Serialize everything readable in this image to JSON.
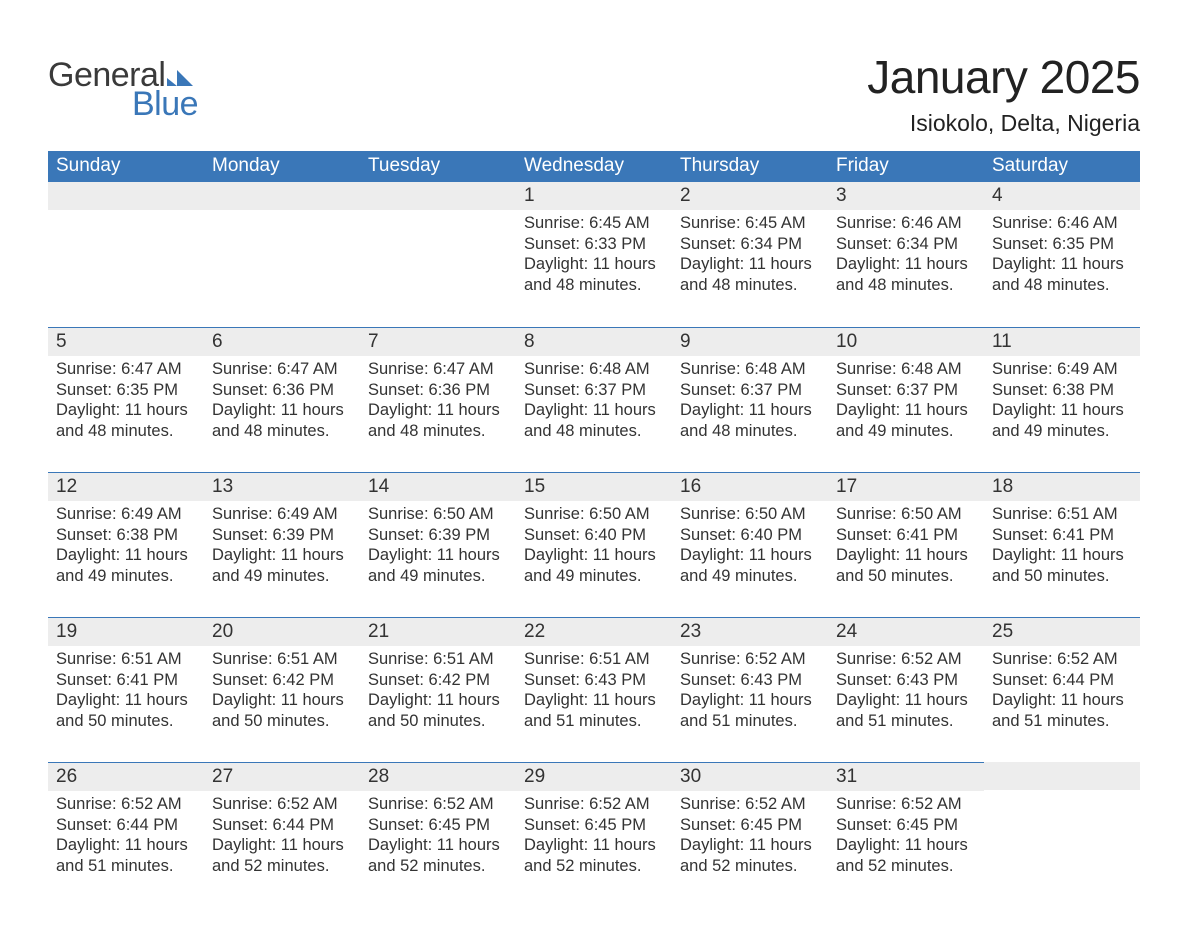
{
  "logo": {
    "text_general": "General",
    "text_blue": "Blue",
    "mark_color": "#3a77b8"
  },
  "title": "January 2025",
  "location": "Isiokolo, Delta, Nigeria",
  "colors": {
    "header_bg": "#3a77b8",
    "header_text": "#ffffff",
    "daynum_bg": "#ededed",
    "daynum_border": "#3a77b8",
    "body_text": "#333333",
    "page_bg": "#ffffff"
  },
  "weekdays": [
    "Sunday",
    "Monday",
    "Tuesday",
    "Wednesday",
    "Thursday",
    "Friday",
    "Saturday"
  ],
  "weeks": [
    [
      {
        "blank": true
      },
      {
        "blank": true
      },
      {
        "blank": true
      },
      {
        "day": "1",
        "sunrise": "Sunrise: 6:45 AM",
        "sunset": "Sunset: 6:33 PM",
        "dl1": "Daylight: 11 hours",
        "dl2": "and 48 minutes."
      },
      {
        "day": "2",
        "sunrise": "Sunrise: 6:45 AM",
        "sunset": "Sunset: 6:34 PM",
        "dl1": "Daylight: 11 hours",
        "dl2": "and 48 minutes."
      },
      {
        "day": "3",
        "sunrise": "Sunrise: 6:46 AM",
        "sunset": "Sunset: 6:34 PM",
        "dl1": "Daylight: 11 hours",
        "dl2": "and 48 minutes."
      },
      {
        "day": "4",
        "sunrise": "Sunrise: 6:46 AM",
        "sunset": "Sunset: 6:35 PM",
        "dl1": "Daylight: 11 hours",
        "dl2": "and 48 minutes."
      }
    ],
    [
      {
        "day": "5",
        "sunrise": "Sunrise: 6:47 AM",
        "sunset": "Sunset: 6:35 PM",
        "dl1": "Daylight: 11 hours",
        "dl2": "and 48 minutes."
      },
      {
        "day": "6",
        "sunrise": "Sunrise: 6:47 AM",
        "sunset": "Sunset: 6:36 PM",
        "dl1": "Daylight: 11 hours",
        "dl2": "and 48 minutes."
      },
      {
        "day": "7",
        "sunrise": "Sunrise: 6:47 AM",
        "sunset": "Sunset: 6:36 PM",
        "dl1": "Daylight: 11 hours",
        "dl2": "and 48 minutes."
      },
      {
        "day": "8",
        "sunrise": "Sunrise: 6:48 AM",
        "sunset": "Sunset: 6:37 PM",
        "dl1": "Daylight: 11 hours",
        "dl2": "and 48 minutes."
      },
      {
        "day": "9",
        "sunrise": "Sunrise: 6:48 AM",
        "sunset": "Sunset: 6:37 PM",
        "dl1": "Daylight: 11 hours",
        "dl2": "and 48 minutes."
      },
      {
        "day": "10",
        "sunrise": "Sunrise: 6:48 AM",
        "sunset": "Sunset: 6:37 PM",
        "dl1": "Daylight: 11 hours",
        "dl2": "and 49 minutes."
      },
      {
        "day": "11",
        "sunrise": "Sunrise: 6:49 AM",
        "sunset": "Sunset: 6:38 PM",
        "dl1": "Daylight: 11 hours",
        "dl2": "and 49 minutes."
      }
    ],
    [
      {
        "day": "12",
        "sunrise": "Sunrise: 6:49 AM",
        "sunset": "Sunset: 6:38 PM",
        "dl1": "Daylight: 11 hours",
        "dl2": "and 49 minutes."
      },
      {
        "day": "13",
        "sunrise": "Sunrise: 6:49 AM",
        "sunset": "Sunset: 6:39 PM",
        "dl1": "Daylight: 11 hours",
        "dl2": "and 49 minutes."
      },
      {
        "day": "14",
        "sunrise": "Sunrise: 6:50 AM",
        "sunset": "Sunset: 6:39 PM",
        "dl1": "Daylight: 11 hours",
        "dl2": "and 49 minutes."
      },
      {
        "day": "15",
        "sunrise": "Sunrise: 6:50 AM",
        "sunset": "Sunset: 6:40 PM",
        "dl1": "Daylight: 11 hours",
        "dl2": "and 49 minutes."
      },
      {
        "day": "16",
        "sunrise": "Sunrise: 6:50 AM",
        "sunset": "Sunset: 6:40 PM",
        "dl1": "Daylight: 11 hours",
        "dl2": "and 49 minutes."
      },
      {
        "day": "17",
        "sunrise": "Sunrise: 6:50 AM",
        "sunset": "Sunset: 6:41 PM",
        "dl1": "Daylight: 11 hours",
        "dl2": "and 50 minutes."
      },
      {
        "day": "18",
        "sunrise": "Sunrise: 6:51 AM",
        "sunset": "Sunset: 6:41 PM",
        "dl1": "Daylight: 11 hours",
        "dl2": "and 50 minutes."
      }
    ],
    [
      {
        "day": "19",
        "sunrise": "Sunrise: 6:51 AM",
        "sunset": "Sunset: 6:41 PM",
        "dl1": "Daylight: 11 hours",
        "dl2": "and 50 minutes."
      },
      {
        "day": "20",
        "sunrise": "Sunrise: 6:51 AM",
        "sunset": "Sunset: 6:42 PM",
        "dl1": "Daylight: 11 hours",
        "dl2": "and 50 minutes."
      },
      {
        "day": "21",
        "sunrise": "Sunrise: 6:51 AM",
        "sunset": "Sunset: 6:42 PM",
        "dl1": "Daylight: 11 hours",
        "dl2": "and 50 minutes."
      },
      {
        "day": "22",
        "sunrise": "Sunrise: 6:51 AM",
        "sunset": "Sunset: 6:43 PM",
        "dl1": "Daylight: 11 hours",
        "dl2": "and 51 minutes."
      },
      {
        "day": "23",
        "sunrise": "Sunrise: 6:52 AM",
        "sunset": "Sunset: 6:43 PM",
        "dl1": "Daylight: 11 hours",
        "dl2": "and 51 minutes."
      },
      {
        "day": "24",
        "sunrise": "Sunrise: 6:52 AM",
        "sunset": "Sunset: 6:43 PM",
        "dl1": "Daylight: 11 hours",
        "dl2": "and 51 minutes."
      },
      {
        "day": "25",
        "sunrise": "Sunrise: 6:52 AM",
        "sunset": "Sunset: 6:44 PM",
        "dl1": "Daylight: 11 hours",
        "dl2": "and 51 minutes."
      }
    ],
    [
      {
        "day": "26",
        "sunrise": "Sunrise: 6:52 AM",
        "sunset": "Sunset: 6:44 PM",
        "dl1": "Daylight: 11 hours",
        "dl2": "and 51 minutes."
      },
      {
        "day": "27",
        "sunrise": "Sunrise: 6:52 AM",
        "sunset": "Sunset: 6:44 PM",
        "dl1": "Daylight: 11 hours",
        "dl2": "and 52 minutes."
      },
      {
        "day": "28",
        "sunrise": "Sunrise: 6:52 AM",
        "sunset": "Sunset: 6:45 PM",
        "dl1": "Daylight: 11 hours",
        "dl2": "and 52 minutes."
      },
      {
        "day": "29",
        "sunrise": "Sunrise: 6:52 AM",
        "sunset": "Sunset: 6:45 PM",
        "dl1": "Daylight: 11 hours",
        "dl2": "and 52 minutes."
      },
      {
        "day": "30",
        "sunrise": "Sunrise: 6:52 AM",
        "sunset": "Sunset: 6:45 PM",
        "dl1": "Daylight: 11 hours",
        "dl2": "and 52 minutes."
      },
      {
        "day": "31",
        "sunrise": "Sunrise: 6:52 AM",
        "sunset": "Sunset: 6:45 PM",
        "dl1": "Daylight: 11 hours",
        "dl2": "and 52 minutes."
      },
      {
        "blank": true
      }
    ]
  ]
}
